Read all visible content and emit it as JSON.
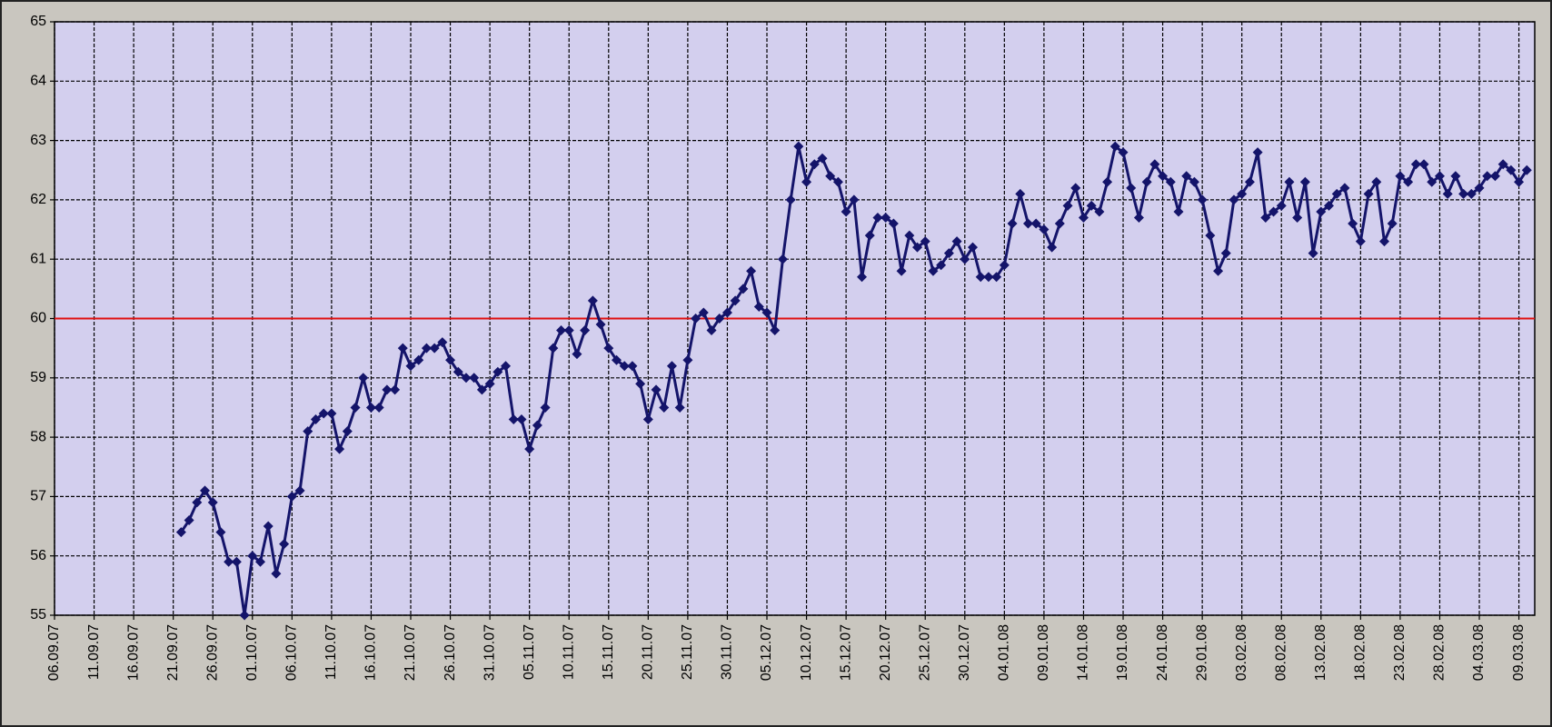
{
  "chart_data": {
    "type": "line",
    "x": [
      "22.09.07",
      "23.09.07",
      "24.09.07",
      "25.09.07",
      "26.09.07",
      "27.09.07",
      "28.09.07",
      "29.09.07",
      "30.09.07",
      "01.10.07",
      "02.10.07",
      "03.10.07",
      "04.10.07",
      "05.10.07",
      "06.10.07",
      "07.10.07",
      "08.10.07",
      "09.10.07",
      "10.10.07",
      "11.10.07",
      "12.10.07",
      "13.10.07",
      "14.10.07",
      "15.10.07",
      "16.10.07",
      "17.10.07",
      "18.10.07",
      "19.10.07",
      "20.10.07",
      "21.10.07",
      "22.10.07",
      "23.10.07",
      "24.10.07",
      "25.10.07",
      "26.10.07",
      "27.10.07",
      "28.10.07",
      "29.10.07",
      "30.10.07",
      "31.10.07",
      "01.11.07",
      "02.11.07",
      "03.11.07",
      "04.11.07",
      "05.11.07",
      "06.11.07",
      "07.11.07",
      "08.11.07",
      "09.11.07",
      "10.11.07",
      "11.11.07",
      "12.11.07",
      "13.11.07",
      "14.11.07",
      "15.11.07",
      "16.11.07",
      "17.11.07",
      "18.11.07",
      "19.11.07",
      "20.11.07",
      "21.11.07",
      "22.11.07",
      "23.11.07",
      "24.11.07",
      "25.11.07",
      "26.11.07",
      "27.11.07",
      "28.11.07",
      "29.11.07",
      "30.11.07",
      "01.12.07",
      "02.12.07",
      "03.12.07",
      "04.12.07",
      "05.12.07",
      "06.12.07",
      "07.12.07",
      "08.12.07",
      "09.12.07",
      "10.12.07",
      "11.12.07",
      "12.12.07",
      "13.12.07",
      "14.12.07",
      "15.12.07",
      "16.12.07",
      "17.12.07",
      "18.12.07",
      "19.12.07",
      "20.12.07",
      "21.12.07",
      "22.12.07",
      "23.12.07",
      "24.12.07",
      "25.12.07",
      "26.12.07",
      "27.12.07",
      "28.12.07",
      "29.12.07",
      "30.12.07",
      "31.12.07",
      "01.01.08",
      "02.01.08",
      "03.01.08",
      "04.01.08",
      "05.01.08",
      "06.01.08",
      "07.01.08",
      "08.01.08",
      "09.01.08",
      "10.01.08",
      "11.01.08",
      "12.01.08",
      "13.01.08",
      "14.01.08",
      "15.01.08",
      "16.01.08",
      "17.01.08",
      "18.01.08",
      "19.01.08",
      "20.01.08",
      "21.01.08",
      "22.01.08",
      "23.01.08",
      "24.01.08",
      "25.01.08",
      "26.01.08",
      "27.01.08",
      "28.01.08",
      "29.01.08",
      "30.01.08",
      "31.01.08",
      "01.02.08",
      "02.02.08",
      "03.02.08",
      "04.02.08",
      "05.02.08",
      "06.02.08",
      "07.02.08",
      "08.02.08",
      "09.02.08",
      "10.02.08",
      "11.02.08",
      "12.02.08",
      "13.02.08",
      "14.02.08",
      "15.02.08",
      "16.02.08",
      "17.02.08",
      "18.02.08",
      "19.02.08",
      "20.02.08",
      "21.02.08",
      "22.02.08",
      "23.02.08",
      "24.02.08",
      "25.02.08",
      "26.02.08",
      "27.02.08",
      "28.02.08",
      "29.02.08",
      "01.03.08",
      "02.03.08",
      "03.03.08",
      "04.03.08",
      "05.03.08",
      "06.03.08",
      "07.03.08",
      "08.03.08",
      "09.03.08",
      "10.03.08"
    ],
    "values": [
      56.4,
      56.6,
      56.9,
      57.1,
      56.9,
      56.4,
      55.9,
      55.9,
      55.0,
      56.0,
      55.9,
      56.5,
      55.7,
      56.2,
      57.0,
      57.1,
      58.1,
      58.3,
      58.4,
      58.4,
      57.8,
      58.1,
      58.5,
      59.0,
      58.5,
      58.5,
      58.8,
      58.8,
      59.5,
      59.2,
      59.3,
      59.5,
      59.5,
      59.6,
      59.3,
      59.1,
      59.0,
      59.0,
      58.8,
      58.9,
      59.1,
      59.2,
      58.3,
      58.3,
      57.8,
      58.2,
      58.5,
      59.5,
      59.8,
      59.8,
      59.4,
      59.8,
      60.3,
      59.9,
      59.5,
      59.3,
      59.2,
      59.2,
      58.9,
      58.3,
      58.8,
      58.5,
      59.2,
      58.5,
      59.3,
      60.0,
      60.1,
      59.8,
      60.0,
      60.1,
      60.3,
      60.5,
      60.8,
      60.2,
      60.1,
      59.8,
      61.0,
      62.0,
      62.9,
      62.3,
      62.6,
      62.7,
      62.4,
      62.3,
      61.8,
      62.0,
      60.7,
      61.4,
      61.7,
      61.7,
      61.6,
      60.8,
      61.4,
      61.2,
      61.3,
      60.8,
      60.9,
      61.1,
      61.3,
      61.0,
      61.2,
      60.7,
      60.7,
      60.7,
      60.9,
      61.6,
      62.1,
      61.6,
      61.6,
      61.5,
      61.2,
      61.6,
      61.9,
      62.2,
      61.7,
      61.9,
      61.8,
      62.3,
      62.9,
      62.8,
      62.2,
      61.7,
      62.3,
      62.6,
      62.4,
      62.3,
      61.8,
      62.4,
      62.3,
      62.0,
      61.4,
      60.8,
      61.1,
      62.0,
      62.1,
      62.3,
      62.8,
      61.7,
      61.8,
      61.9,
      62.3,
      61.7,
      62.3,
      61.1,
      61.8,
      61.9,
      62.1,
      62.2,
      61.6,
      61.3,
      62.1,
      62.3,
      61.3,
      61.6,
      62.4,
      62.3,
      62.6,
      62.6,
      62.3,
      62.4,
      62.1,
      62.4,
      62.1,
      62.1,
      62.2,
      62.4,
      62.4,
      62.6,
      62.5,
      62.3,
      62.5
    ],
    "color": "#14146a",
    "xlim": [
      "06.09.07",
      "11.03.08"
    ],
    "xticks": [
      "06.09.07",
      "11.09.07",
      "16.09.07",
      "21.09.07",
      "26.09.07",
      "01.10.07",
      "06.10.07",
      "11.10.07",
      "16.10.07",
      "21.10.07",
      "26.10.07",
      "31.10.07",
      "05.11.07",
      "10.11.07",
      "15.11.07",
      "20.11.07",
      "25.11.07",
      "30.11.07",
      "05.12.07",
      "10.12.07",
      "15.12.07",
      "20.12.07",
      "25.12.07",
      "30.12.07",
      "04.01.08",
      "09.01.08",
      "14.01.08",
      "19.01.08",
      "24.01.08",
      "29.01.08",
      "03.02.08",
      "08.02.08",
      "13.02.08",
      "18.02.08",
      "23.02.08",
      "28.02.08",
      "04.03.08",
      "09.03.08"
    ],
    "ylim": [
      55,
      65
    ],
    "yticks": [
      55,
      56,
      57,
      58,
      59,
      60,
      61,
      62,
      63,
      64,
      65
    ],
    "grid": true,
    "reference_line": {
      "value": 60,
      "color": "#e01010"
    }
  }
}
